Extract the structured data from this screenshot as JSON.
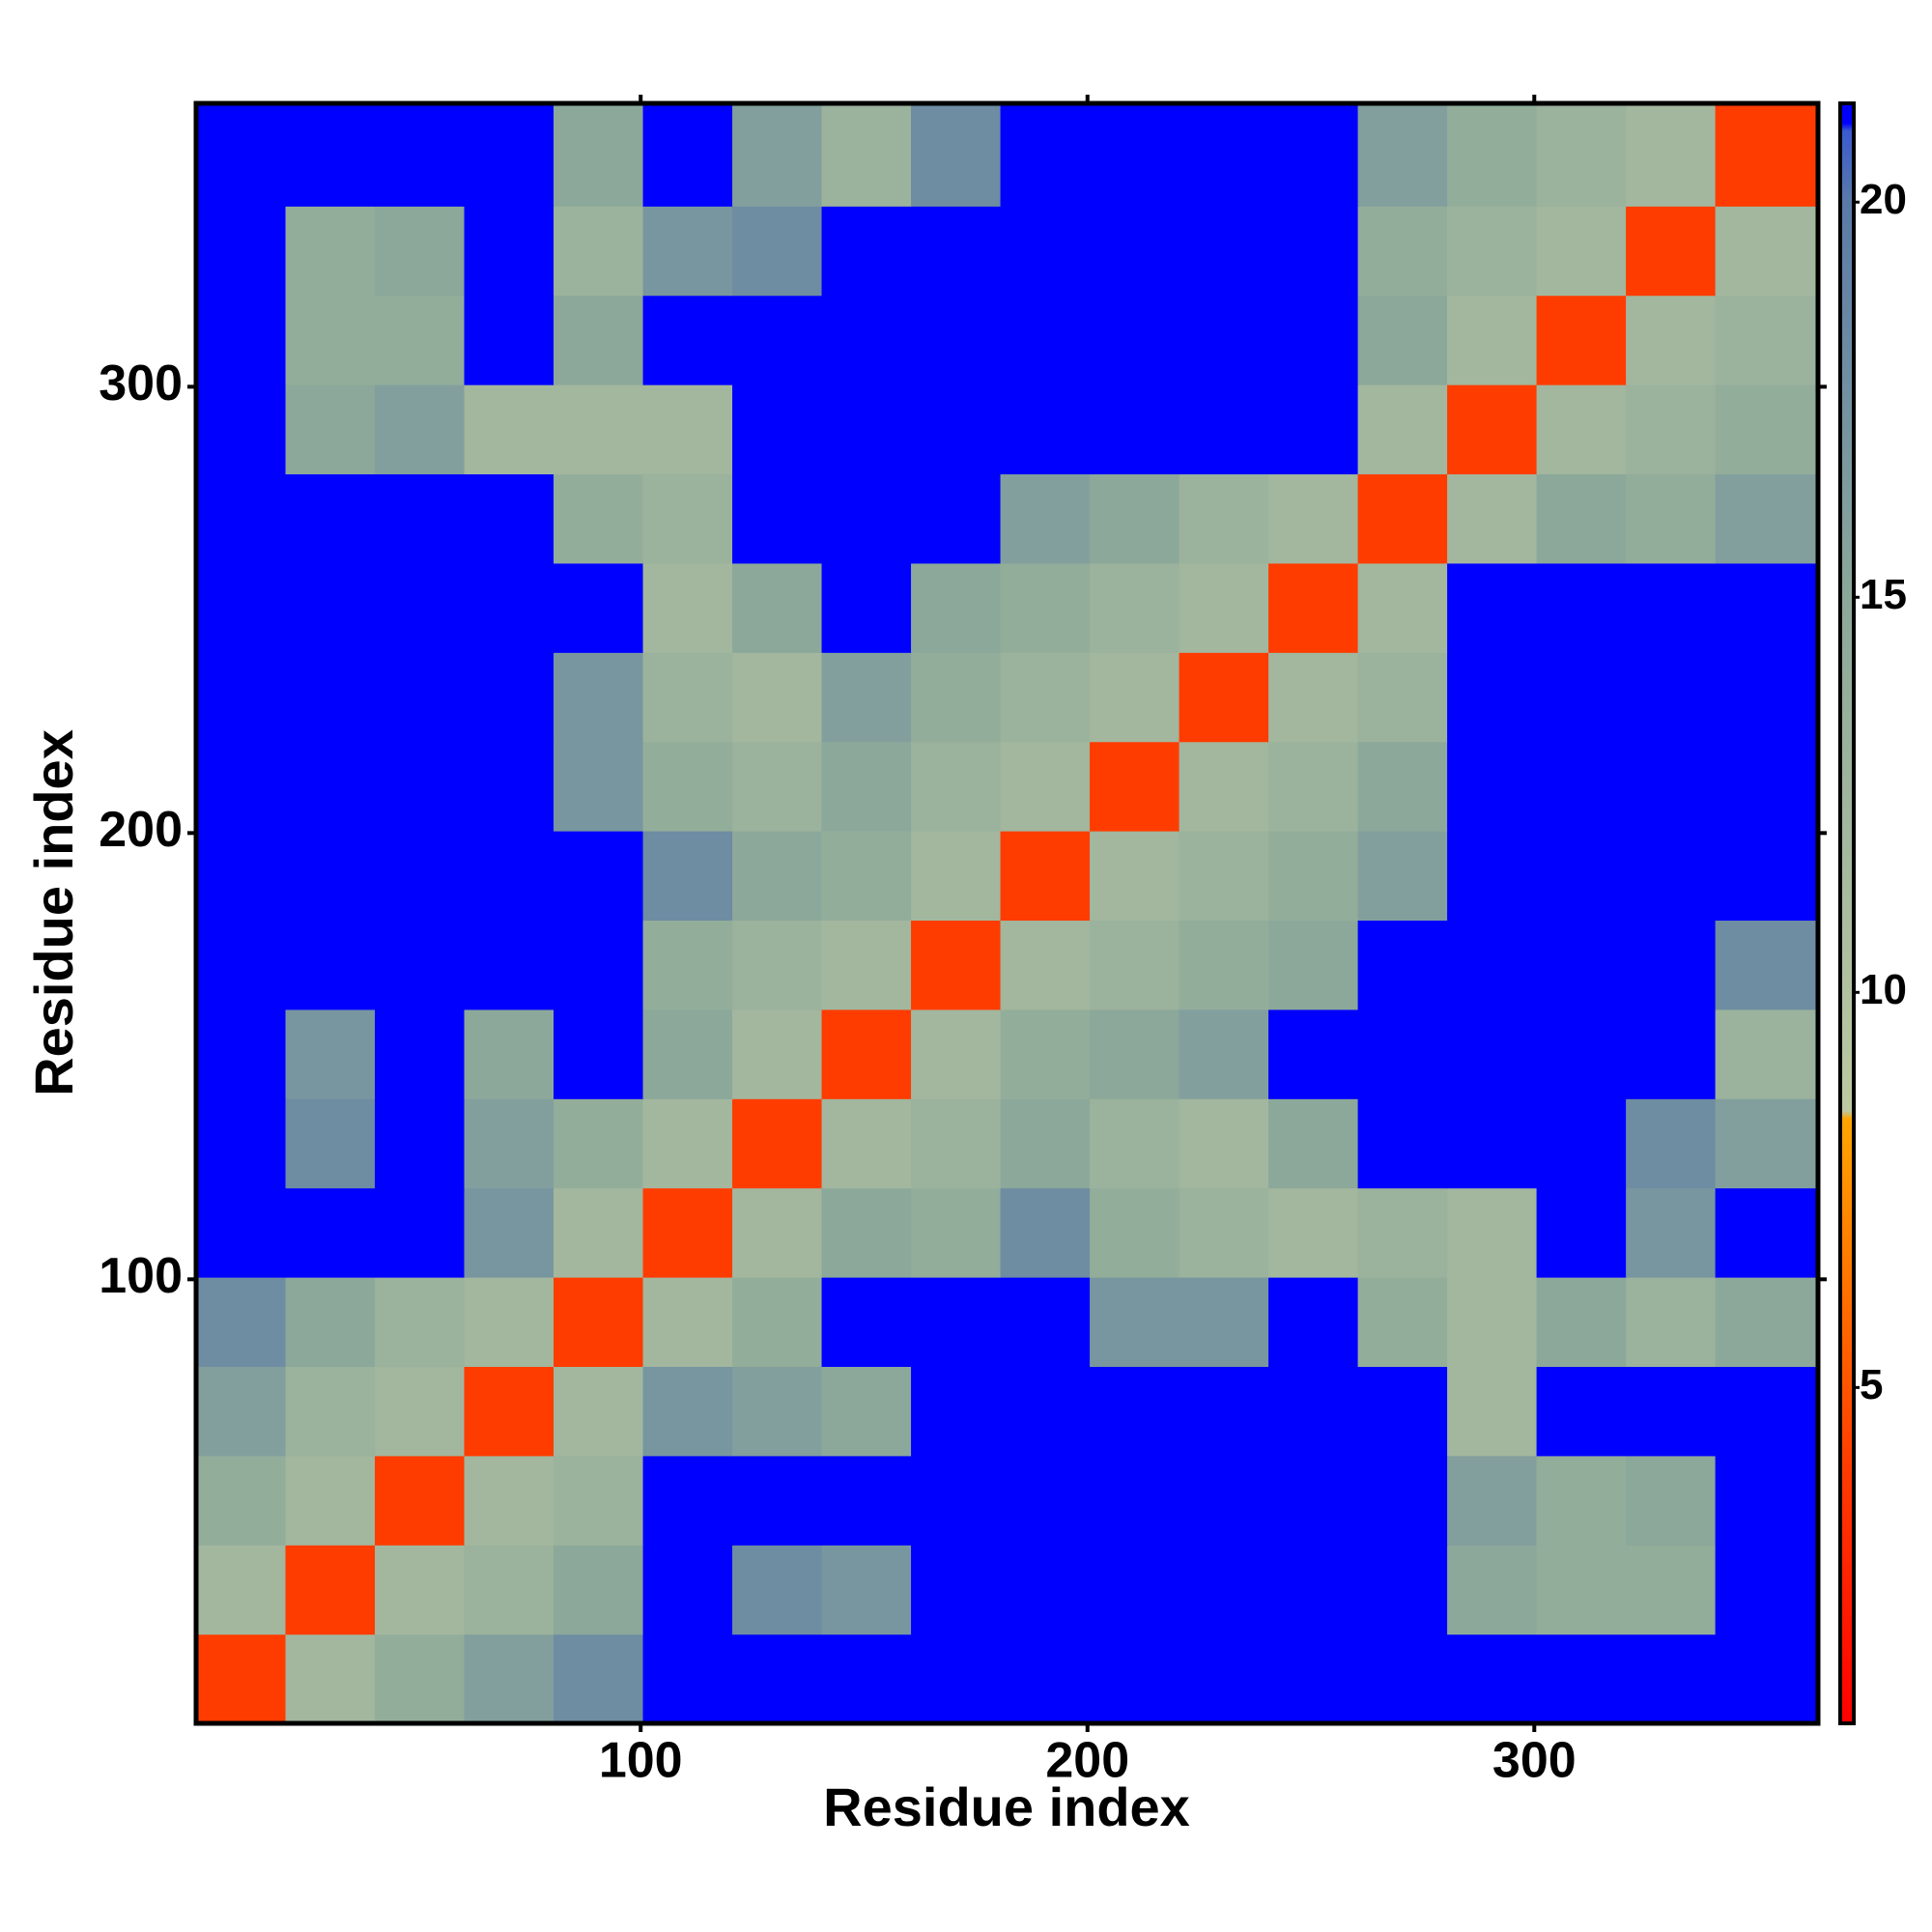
{
  "chart_data": {
    "type": "heatmap",
    "xlabel": "Residue index",
    "ylabel": "Residue index",
    "xlim": [
      0.5,
      363.5
    ],
    "ylim": [
      0.5,
      363.5
    ],
    "xticks": [
      100,
      200,
      300
    ],
    "yticks": [
      100,
      200,
      300
    ],
    "x_edges": [
      0.5,
      20.5,
      40.5,
      60.5,
      80.5,
      100.5,
      120.5,
      140.5,
      160.5,
      180.5,
      200.5,
      220.5,
      240.5,
      260.5,
      280.5,
      300.5,
      320.5,
      340.5,
      363.5
    ],
    "y_edges": [
      0.5,
      20.5,
      40.5,
      60.5,
      80.5,
      100.5,
      120.5,
      140.5,
      160.5,
      180.5,
      200.5,
      220.5,
      240.5,
      260.5,
      280.5,
      300.5,
      320.5,
      340.5,
      363.5
    ],
    "z": [
      [
        4,
        12,
        14,
        16,
        18,
        21,
        21,
        21,
        21,
        21,
        21,
        21,
        21,
        21,
        21,
        21,
        21,
        21
      ],
      [
        12,
        4,
        12,
        13,
        15,
        21,
        18,
        17,
        21,
        21,
        21,
        21,
        21,
        21,
        15,
        14,
        14,
        21
      ],
      [
        14,
        12,
        4,
        12,
        13,
        21,
        21,
        21,
        21,
        21,
        21,
        21,
        21,
        21,
        16,
        14,
        15,
        21
      ],
      [
        16,
        13,
        12,
        4,
        12,
        17,
        16,
        15,
        21,
        21,
        21,
        21,
        21,
        21,
        12,
        21,
        21,
        21
      ],
      [
        18,
        15,
        13,
        12,
        4,
        12,
        14,
        21,
        21,
        21,
        17,
        17,
        21,
        14,
        12,
        15,
        13,
        15
      ],
      [
        21,
        21,
        21,
        17,
        12,
        4,
        12,
        15,
        14,
        18,
        14,
        13,
        12,
        13,
        12,
        21,
        17,
        21
      ],
      [
        21,
        18,
        21,
        16,
        14,
        12,
        4,
        12,
        13,
        15,
        13,
        12,
        15,
        21,
        21,
        21,
        18,
        16
      ],
      [
        21,
        17,
        21,
        15,
        21,
        15,
        12,
        4,
        12,
        14,
        15,
        16,
        21,
        21,
        21,
        21,
        21,
        13
      ],
      [
        21,
        21,
        21,
        21,
        21,
        14,
        13,
        12,
        4,
        12,
        13,
        14,
        15,
        21,
        21,
        21,
        21,
        18
      ],
      [
        21,
        21,
        21,
        21,
        21,
        18,
        15,
        14,
        12,
        4,
        12,
        13,
        14,
        16,
        21,
        21,
        21,
        21
      ],
      [
        21,
        21,
        21,
        21,
        17,
        14,
        13,
        15,
        13,
        12,
        4,
        12,
        13,
        15,
        21,
        21,
        21,
        21
      ],
      [
        21,
        21,
        21,
        21,
        17,
        13,
        12,
        16,
        14,
        13,
        12,
        4,
        12,
        13,
        21,
        21,
        21,
        21
      ],
      [
        21,
        21,
        21,
        21,
        21,
        12,
        15,
        21,
        15,
        14,
        13,
        12,
        4,
        12,
        21,
        21,
        21,
        21
      ],
      [
        21,
        21,
        21,
        21,
        14,
        13,
        21,
        21,
        21,
        16,
        15,
        13,
        12,
        4,
        12,
        15,
        14,
        16
      ],
      [
        21,
        15,
        16,
        12,
        12,
        12,
        21,
        21,
        21,
        21,
        21,
        21,
        21,
        12,
        4,
        12,
        13,
        14
      ],
      [
        21,
        14,
        14,
        21,
        15,
        21,
        21,
        21,
        21,
        21,
        21,
        21,
        21,
        15,
        12,
        4,
        12,
        13
      ],
      [
        21,
        14,
        15,
        21,
        13,
        17,
        18,
        21,
        21,
        21,
        21,
        21,
        21,
        14,
        13,
        12,
        4,
        12
      ],
      [
        21,
        21,
        21,
        21,
        15,
        21,
        16,
        13,
        18,
        21,
        21,
        21,
        21,
        16,
        14,
        13,
        12,
        4
      ]
    ],
    "zlim": [
      0.75,
      21.25
    ],
    "zticks": [
      5,
      10,
      15,
      20
    ],
    "colorscale": [
      [
        0.75,
        "#ff0000"
      ],
      [
        4,
        "#ff3c00"
      ],
      [
        8.4,
        "#ffa500"
      ],
      [
        8.5,
        "#bcc9a2"
      ],
      [
        15,
        "#8ca89a"
      ],
      [
        20,
        "#5a7aa8"
      ],
      [
        20.9,
        "#3a5ad0"
      ],
      [
        21,
        "#0000ff"
      ]
    ]
  }
}
